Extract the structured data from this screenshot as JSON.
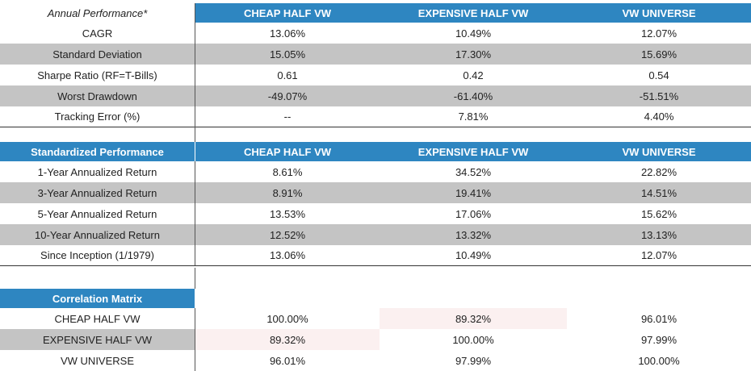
{
  "annual": {
    "headers": [
      "Annual Performance*",
      "CHEAP HALF VW",
      "EXPENSIVE HALF VW",
      "VW UNIVERSE"
    ],
    "rows": [
      [
        "CAGR",
        "13.06%",
        "10.49%",
        "12.07%"
      ],
      [
        "Standard Deviation",
        "15.05%",
        "17.30%",
        "15.69%"
      ],
      [
        "Sharpe Ratio (RF=T-Bills)",
        "0.61",
        "0.42",
        "0.54"
      ],
      [
        "Worst Drawdown",
        "-49.07%",
        "-61.40%",
        "-51.51%"
      ],
      [
        "Tracking Error (%)",
        "--",
        "7.81%",
        "4.40%"
      ]
    ]
  },
  "standardized": {
    "headers": [
      "Standardized Performance",
      "CHEAP HALF VW",
      "EXPENSIVE HALF VW",
      "VW UNIVERSE"
    ],
    "rows": [
      [
        "1-Year Annualized Return",
        "8.61%",
        "34.52%",
        "22.82%"
      ],
      [
        "3-Year Annualized Return",
        "8.91%",
        "19.41%",
        "14.51%"
      ],
      [
        "5-Year Annualized Return",
        "13.53%",
        "17.06%",
        "15.62%"
      ],
      [
        "10-Year Annualized Return",
        "12.52%",
        "13.32%",
        "13.13%"
      ],
      [
        "Since Inception (1/1979)",
        "13.06%",
        "10.49%",
        "12.07%"
      ]
    ]
  },
  "correlation": {
    "headers": [
      "Correlation Matrix",
      "CHEAP HALF VW",
      "EXPENSIVE HALF VW",
      "VW UNIVERSE"
    ],
    "rows": [
      [
        "CHEAP HALF VW",
        "100.00%",
        "89.32%",
        "96.01%"
      ],
      [
        "EXPENSIVE HALF VW",
        "89.32%",
        "100.00%",
        "97.99%"
      ],
      [
        "VW UNIVERSE",
        "96.01%",
        "97.99%",
        "100.00%"
      ]
    ]
  },
  "colors": {
    "header_blue": "#2e86c1",
    "alt_row_gray": "#c4c4c4",
    "correlation_tint": "#fbf0f0"
  }
}
